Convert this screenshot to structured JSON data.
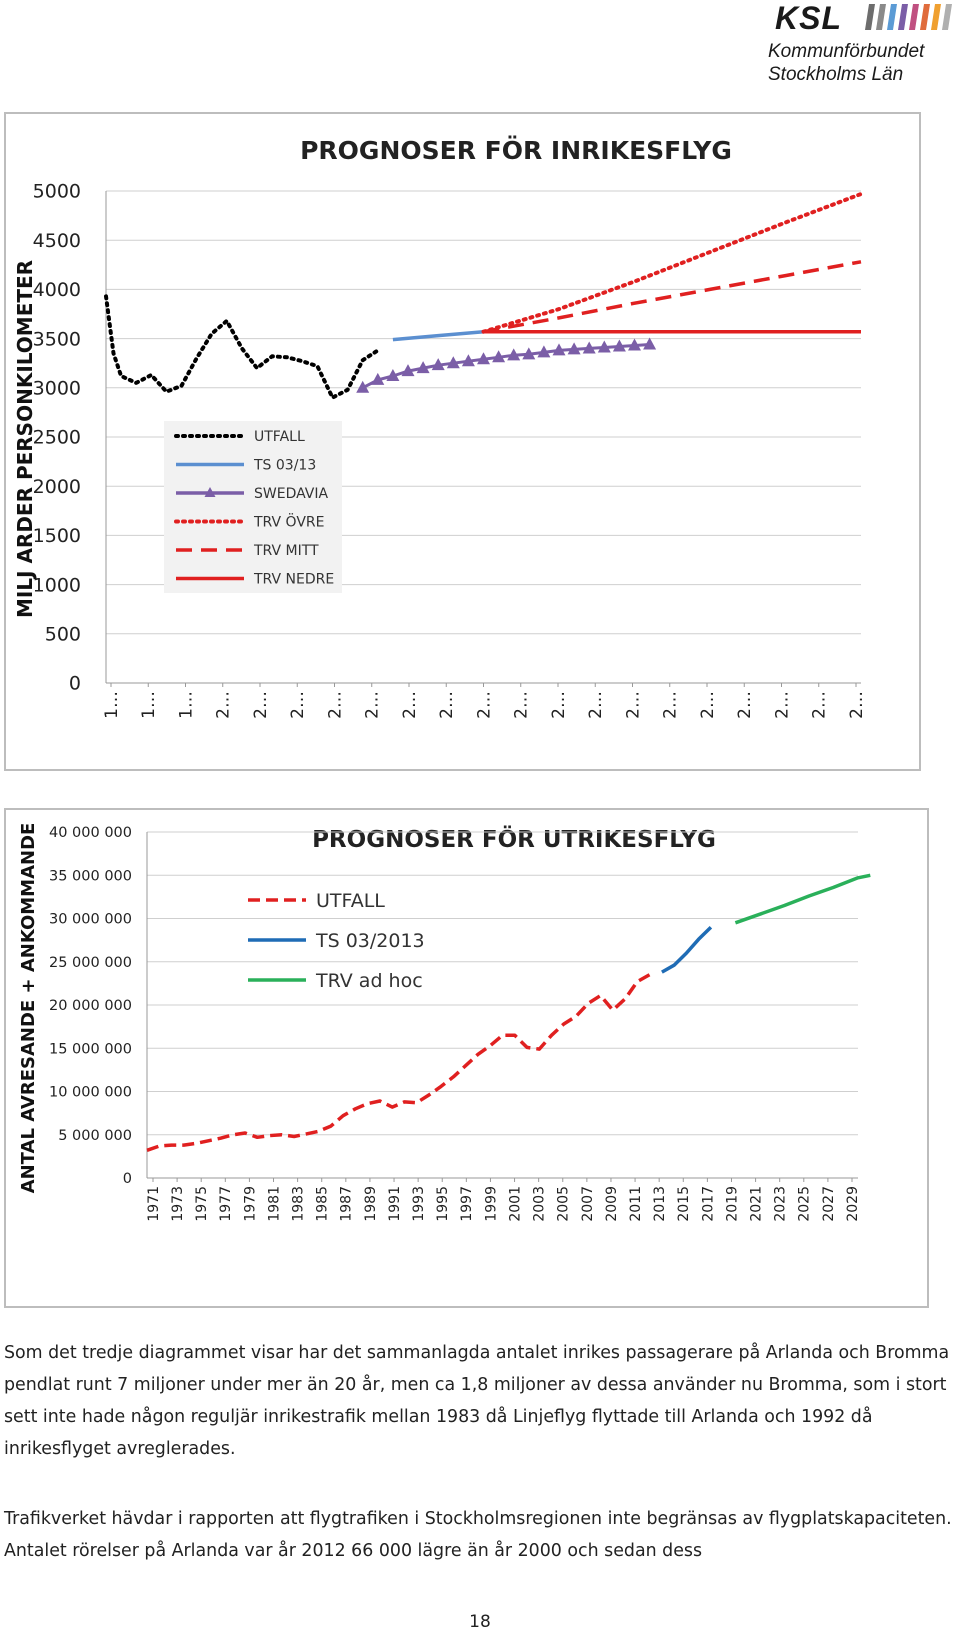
{
  "logo": {
    "name": "KSL",
    "line1": "Kommunförbundet",
    "line2": "Stockholms Län",
    "stripe_colors": [
      "#6d6d6d",
      "#8a8a8a",
      "#5b9bd5",
      "#7b5ea7",
      "#c05080",
      "#e06c3c",
      "#f0a030",
      "#b0b0b0"
    ]
  },
  "chart_data": [
    {
      "type": "line",
      "title": "PROGNOSER FÖR INRIKESFLYG",
      "ylabel": "MILJ ARDER PERSONKILOMETER",
      "xlabel": "",
      "ylim": [
        0,
        5000
      ],
      "yticks": [
        "0",
        "500",
        "1000",
        "1500",
        "2000",
        "2500",
        "3000",
        "3500",
        "4000",
        "4500",
        "5000"
      ],
      "x_tick_labels": [
        "1…",
        "1…",
        "1…",
        "2…",
        "2…",
        "2…",
        "2…",
        "2…",
        "2…",
        "2…",
        "2…",
        "2…",
        "2…",
        "2…",
        "2…",
        "2…",
        "2…",
        "2…",
        "2…",
        "2…",
        "2…"
      ],
      "x_start": 1980,
      "x_end": 2030,
      "grid": true,
      "legend_position": "left-center",
      "series": [
        {
          "name": "UTFALL",
          "color": "#000000",
          "style": "dotted",
          "x": [
            1980,
            1980.5,
            1981,
            1982,
            1983,
            1984,
            1985,
            1986,
            1987,
            1988,
            1989,
            1990,
            1991,
            1992,
            1993,
            1994,
            1995,
            1996,
            1997,
            1998
          ],
          "y": [
            3930,
            3350,
            3120,
            3050,
            3130,
            2960,
            3020,
            3300,
            3550,
            3680,
            3400,
            3200,
            3320,
            3310,
            3270,
            3220,
            2900,
            2980,
            3280,
            3380
          ]
        },
        {
          "name": "TS 03/13",
          "color": "#5b8fd0",
          "style": "solid",
          "x": [
            1999,
            2002,
            2005
          ],
          "y": [
            3490,
            3530,
            3570
          ]
        },
        {
          "name": "SWEDAVIA",
          "color": "#7b5ea7",
          "style": "triangle",
          "x": [
            1997,
            1998,
            1999,
            2000,
            2001,
            2002,
            2003,
            2004,
            2005,
            2006,
            2007,
            2008,
            2009,
            2010,
            2011,
            2012,
            2013,
            2014,
            2015,
            2016
          ],
          "y": [
            3000,
            3080,
            3120,
            3170,
            3200,
            3230,
            3250,
            3270,
            3290,
            3310,
            3330,
            3340,
            3360,
            3380,
            3390,
            3400,
            3410,
            3420,
            3430,
            3440
          ]
        },
        {
          "name": "TRV ÖVRE",
          "color": "#e02020",
          "style": "dotted",
          "x": [
            2005,
            2010,
            2015,
            2020,
            2025,
            2030
          ],
          "y": [
            3570,
            3800,
            4080,
            4380,
            4680,
            4970
          ]
        },
        {
          "name": "TRV MITT",
          "color": "#e02020",
          "style": "dashed",
          "x": [
            2005,
            2010,
            2015,
            2020,
            2025,
            2030
          ],
          "y": [
            3570,
            3710,
            3860,
            4000,
            4140,
            4280
          ]
        },
        {
          "name": "TRV NEDRE",
          "color": "#e02020",
          "style": "solid",
          "x": [
            2005,
            2030
          ],
          "y": [
            3570,
            3570
          ]
        }
      ]
    },
    {
      "type": "line",
      "title": "PROGNOSER FÖR UTRIKESFLYG",
      "ylabel": "ANTAL AVRESANDE + ANKOMMANDE",
      "xlabel": "",
      "ylim": [
        0,
        40000000
      ],
      "yticks": [
        "0",
        "5 000 000",
        "10 000 000",
        "15 000 000",
        "20 000 000",
        "25 000 000",
        "30 000 000",
        "35 000 000",
        "40 000 000"
      ],
      "x_tick_labels": [
        "1971",
        "1973",
        "1975",
        "1977",
        "1979",
        "1981",
        "1983",
        "1985",
        "1987",
        "1989",
        "1991",
        "1993",
        "1995",
        "1997",
        "1999",
        "2001",
        "2003",
        "2005",
        "2007",
        "2009",
        "2011",
        "2013",
        "2015",
        "2017",
        "2019",
        "2021",
        "2023",
        "2025",
        "2027",
        "2029"
      ],
      "x_start": 1971,
      "x_end": 2029,
      "grid": true,
      "legend_position": "top-left",
      "series": [
        {
          "name": "UTFALL",
          "color": "#e02020",
          "style": "dashed",
          "x": [
            1971,
            1972,
            1973,
            1974,
            1975,
            1976,
            1977,
            1978,
            1979,
            1980,
            1981,
            1982,
            1983,
            1984,
            1985,
            1986,
            1987,
            1988,
            1989,
            1990,
            1991,
            1992,
            1993,
            1994,
            1995,
            1996,
            1997,
            1998,
            1999,
            2000,
            2001,
            2002,
            2003,
            2004,
            2005,
            2006,
            2007,
            2008,
            2009,
            2010,
            2011,
            2012
          ],
          "y": [
            3200000,
            3700000,
            3800000,
            3800000,
            4000000,
            4300000,
            4600000,
            5000000,
            5200000,
            4700000,
            4900000,
            5000000,
            4800000,
            5100000,
            5400000,
            6000000,
            7200000,
            8000000,
            8600000,
            8900000,
            8200000,
            8800000,
            8700000,
            9600000,
            10600000,
            11700000,
            13000000,
            14300000,
            15300000,
            16500000,
            16500000,
            15100000,
            14900000,
            16500000,
            17800000,
            18700000,
            20200000,
            21100000,
            19400000,
            20700000,
            22700000,
            23500000
          ]
        },
        {
          "name": "TS 03/2013",
          "color": "#1f6cb5",
          "style": "solid",
          "x": [
            2013,
            2014,
            2015,
            2016,
            2017
          ],
          "y": [
            23800000,
            24600000,
            26000000,
            27600000,
            29000000
          ]
        },
        {
          "name": "TRV ad hoc",
          "color": "#2ab05a",
          "style": "solid",
          "x": [
            2019,
            2021,
            2023,
            2025,
            2027,
            2029,
            2030
          ],
          "y": [
            29500000,
            30500000,
            31500000,
            32600000,
            33600000,
            34700000,
            35000000
          ]
        }
      ]
    }
  ],
  "paragraphs": [
    "Som det tredje diagrammet visar har det sammanlagda antalet inrikes passagerare på Arlanda och Bromma pendlat runt 7 miljoner under mer än 20 år, men ca 1,8 miljoner av dessa använder nu Bromma, som i stort sett inte hade någon reguljär inrikestrafik mellan 1983 då Linjeflyg flyttade till Arlanda och 1992 då inrikesflyget avreglerades.",
    "Trafikverket hävdar i rapporten att flygtrafiken i Stockholmsregionen inte begränsas av flygplatskapaciteten. Antalet rörelser på Arlanda var år 2012 66 000 lägre än år 2000 och sedan dess"
  ],
  "page_number": "18"
}
